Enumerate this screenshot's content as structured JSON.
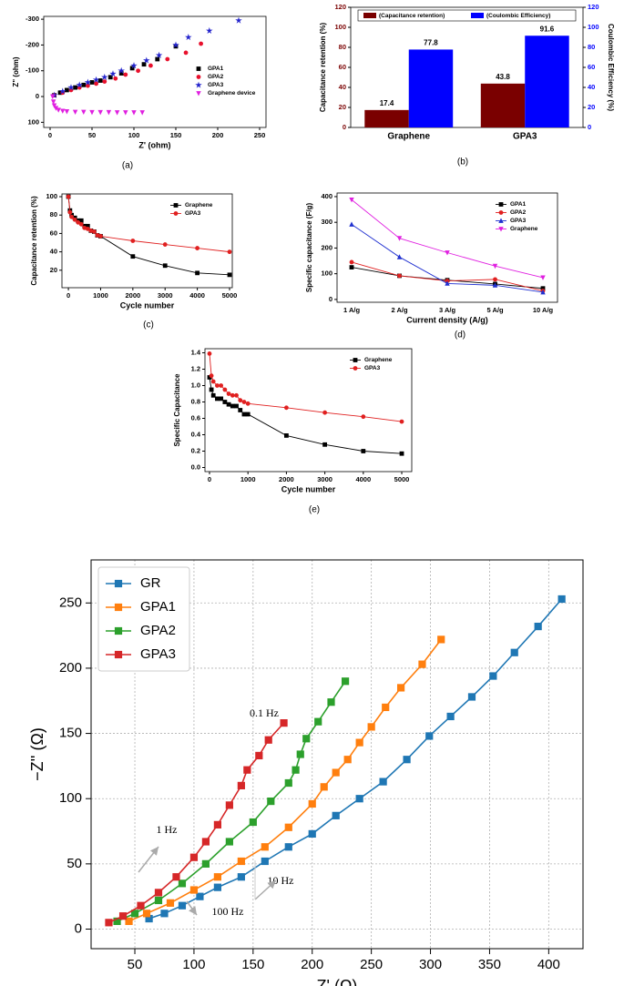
{
  "chart_data": [
    {
      "type": "scatter",
      "caption": "(a)",
      "x_label": "Z' (ohm)",
      "y_label": "Z\" (ohm)",
      "xlim": [
        -7.6,
        257.6
      ],
      "xticks": [
        0,
        50,
        100,
        150,
        200,
        250
      ],
      "ylim": [
        -311,
        120
      ],
      "yticks": [
        -300,
        -200,
        -100,
        0,
        100
      ],
      "y_inverted": true,
      "legend": "center-right",
      "series": [
        {
          "name": "GPA1",
          "color": "#000000",
          "marker": "square",
          "x": [
            5,
            12,
            20,
            30,
            40,
            50,
            60,
            72,
            85,
            98,
            112,
            128,
            150
          ],
          "values": [
            -5,
            -15,
            -25,
            -35,
            -45,
            -55,
            -62,
            -75,
            -90,
            -110,
            -125,
            -145,
            -195
          ]
        },
        {
          "name": "GPA2",
          "color": "#e8112d",
          "marker": "circle",
          "x": [
            5,
            15,
            25,
            35,
            45,
            55,
            65,
            78,
            90,
            105,
            120,
            140,
            162,
            180
          ],
          "values": [
            -5,
            -15,
            -25,
            -35,
            -42,
            -50,
            -58,
            -70,
            -85,
            -100,
            -120,
            -145,
            -170,
            -205
          ]
        },
        {
          "name": "GPA3",
          "color": "#2222cc",
          "marker": "star",
          "x": [
            5,
            15,
            25,
            35,
            45,
            55,
            65,
            75,
            85,
            100,
            115,
            130,
            150,
            165,
            190,
            225
          ],
          "values": [
            -5,
            -20,
            -35,
            -45,
            -55,
            -65,
            -75,
            -88,
            -100,
            -120,
            -140,
            -160,
            -200,
            -230,
            -255,
            -295
          ]
        },
        {
          "name": "Graphene device",
          "color": "#e020e0",
          "marker": "triangle-down",
          "x": [
            3,
            4,
            5,
            7,
            10,
            15,
            20,
            30,
            40,
            50,
            60,
            70,
            80,
            90,
            100,
            110
          ],
          "values": [
            0,
            20,
            35,
            45,
            52,
            56,
            58,
            60,
            60,
            61,
            61,
            61,
            62,
            62,
            62,
            62
          ]
        }
      ]
    },
    {
      "type": "bar",
      "caption": "(b)",
      "y_label": "Capacitance retention (%)",
      "y2_label": "Coulombic Efficiency (%)",
      "categories": [
        "Graphene",
        "GPA3"
      ],
      "ylim": [
        0,
        120
      ],
      "yticks": [
        0,
        20,
        40,
        60,
        80,
        100,
        120
      ],
      "y2lim": [
        0,
        120
      ],
      "y2ticks": [
        0,
        20,
        40,
        60,
        80,
        100,
        120
      ],
      "legend": "upper-center",
      "show_values": true,
      "series": [
        {
          "name": "(Capacitance retention)",
          "color": "#7a0000",
          "values": [
            17.4,
            43.8
          ]
        },
        {
          "name": "(Coulombic Efficiency)",
          "color": "#0000ff",
          "values": [
            77.8,
            91.6
          ],
          "axis": "y2"
        }
      ]
    },
    {
      "type": "line",
      "caption": "(c)",
      "x_label": "Cycle number",
      "y_label": "Capacitance retention (%)",
      "x": [
        0,
        50,
        100,
        200,
        300,
        400,
        500,
        600,
        700,
        800,
        900,
        1000,
        2000,
        3000,
        4000,
        5000
      ],
      "xlim": [
        -200,
        5085
      ],
      "xticks": [
        0,
        1000,
        2000,
        3000,
        4000,
        5000
      ],
      "ylim": [
        1,
        103
      ],
      "yticks": [
        20,
        40,
        60,
        80,
        100
      ],
      "legend": "upper-right",
      "series": [
        {
          "name": "Graphene",
          "color": "#000000",
          "marker": "square",
          "values": [
            100,
            85,
            80,
            77,
            74,
            74,
            68,
            68,
            63,
            62,
            58,
            57,
            35,
            25,
            17,
            15
          ]
        },
        {
          "name": "GPA3",
          "color": "#e02020",
          "marker": "circle",
          "values": [
            100,
            83,
            78,
            75,
            72,
            70,
            66,
            65,
            63,
            62,
            58,
            57,
            52,
            48,
            44,
            40
          ]
        }
      ]
    },
    {
      "type": "line",
      "caption": "(d)",
      "x_label": "Current density (A/g)",
      "y_label": "Specific capacitance (F/g)",
      "categories": [
        "1 A/g",
        "2 A/g",
        "3 A/g",
        "5 A/g",
        "10 A/g"
      ],
      "ylim": [
        -11,
        414
      ],
      "yticks": [
        0,
        100,
        200,
        300,
        400
      ],
      "legend": "upper-right",
      "series": [
        {
          "name": "GPA1",
          "color": "#000000",
          "marker": "square",
          "values": [
            125,
            92,
            75,
            60,
            43
          ]
        },
        {
          "name": "GPA2",
          "color": "#e02020",
          "marker": "circle",
          "values": [
            145,
            92,
            72,
            78,
            33
          ]
        },
        {
          "name": "GPA3",
          "color": "#2030d0",
          "marker": "triangle-up",
          "values": [
            292,
            165,
            62,
            55,
            28
          ]
        },
        {
          "name": "Graphene",
          "color": "#e020e0",
          "marker": "triangle-down",
          "values": [
            388,
            238,
            182,
            130,
            85
          ]
        }
      ]
    },
    {
      "type": "line",
      "caption": "(e)",
      "x_label": "Cycle number",
      "y_label": "Specific Capacitance",
      "x": [
        0,
        50,
        100,
        200,
        300,
        400,
        500,
        600,
        700,
        800,
        900,
        1000,
        2000,
        3000,
        4000,
        5000
      ],
      "xlim": [
        -118,
        5260
      ],
      "xticks": [
        0,
        1000,
        2000,
        3000,
        4000,
        5000
      ],
      "ylim": [
        -0.05,
        1.45
      ],
      "yticks": [
        {
          "value": 0,
          "label": "0.0"
        },
        0.2,
        0.4,
        0.6,
        0.8,
        {
          "value": 1,
          "label": "1.0"
        },
        1.2,
        1.4
      ],
      "legend": "upper-right",
      "series": [
        {
          "name": "Graphene",
          "color": "#000000",
          "marker": "square",
          "values": [
            1.1,
            0.95,
            0.88,
            0.84,
            0.84,
            0.8,
            0.77,
            0.75,
            0.75,
            0.7,
            0.65,
            0.65,
            0.39,
            0.28,
            0.2,
            0.17
          ]
        },
        {
          "name": "GPA3",
          "color": "#e02020",
          "marker": "circle",
          "values": [
            1.39,
            1.12,
            1.05,
            1.0,
            1.0,
            0.95,
            0.9,
            0.88,
            0.88,
            0.82,
            0.8,
            0.78,
            0.73,
            0.67,
            0.62,
            0.56
          ]
        }
      ]
    },
    {
      "type": "line",
      "x_label": "Z' (Ω)",
      "y_label": "−Z'' (Ω)",
      "grid": true,
      "legend": "upper-left",
      "xlim": [
        13,
        429
      ],
      "xticks": [
        50,
        100,
        150,
        200,
        250,
        300,
        350,
        400
      ],
      "ylim": [
        -15,
        283
      ],
      "yticks": [
        0,
        50,
        100,
        150,
        200,
        250
      ],
      "annotations": [
        "0.1 Hz",
        "1 Hz",
        "10 Hz",
        "100 Hz"
      ],
      "series": [
        {
          "name": "GR",
          "color": "#1f77b4",
          "marker": "square",
          "x": [
            62,
            75,
            90,
            105,
            120,
            140,
            160,
            180,
            200,
            220,
            240,
            260,
            280,
            299,
            317,
            335,
            353,
            371,
            391,
            411
          ],
          "values": [
            8,
            12,
            18,
            25,
            32,
            40,
            52,
            63,
            73,
            87,
            100,
            113,
            130,
            148,
            163,
            178,
            194,
            212,
            232,
            253
          ]
        },
        {
          "name": "GPA1",
          "color": "#ff7f0e",
          "marker": "square",
          "x": [
            45,
            60,
            80,
            100,
            120,
            140,
            160,
            180,
            200,
            210,
            220,
            230,
            240,
            250,
            262,
            275,
            293,
            309
          ],
          "values": [
            6,
            12,
            20,
            30,
            40,
            52,
            63,
            78,
            96,
            109,
            120,
            130,
            143,
            155,
            170,
            185,
            203,
            222
          ]
        },
        {
          "name": "GPA2",
          "color": "#2ca02c",
          "marker": "square",
          "x": [
            35,
            50,
            70,
            90,
            110,
            130,
            150,
            165,
            180,
            186,
            190,
            195,
            205,
            216,
            228
          ],
          "values": [
            6,
            12,
            22,
            35,
            50,
            67,
            82,
            98,
            112,
            122,
            134,
            146,
            159,
            174,
            190
          ]
        },
        {
          "name": "GPA3",
          "color": "#d62728",
          "marker": "square",
          "x": [
            28,
            40,
            55,
            70,
            85,
            100,
            110,
            120,
            130,
            140,
            145,
            155,
            163,
            176
          ],
          "values": [
            5,
            10,
            18,
            28,
            40,
            55,
            67,
            80,
            95,
            110,
            122,
            133,
            145,
            158
          ]
        }
      ]
    }
  ]
}
